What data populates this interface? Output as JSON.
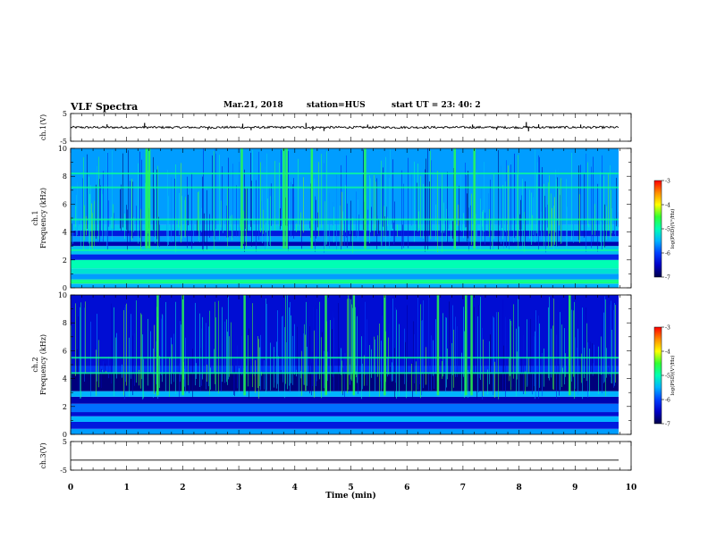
{
  "header": {
    "title": "VLF Spectra",
    "date": "Mar.21, 2018",
    "station": "station=HUS",
    "start_time": "start  UT =   23: 40: 2"
  },
  "chart_data": [
    {
      "type": "line",
      "name": "ch1-waveform",
      "ylabel": "ch.1(V)",
      "ylim": [
        -5,
        5
      ],
      "yticks": [
        "5",
        "-5"
      ],
      "xlim": [
        0,
        10
      ],
      "baseline": 0,
      "noise_amplitude": 0.4,
      "spikes": [
        {
          "x": 0.65,
          "y": 1.1
        },
        {
          "x": 1.32,
          "y": 1.6
        },
        {
          "x": 2.45,
          "y": -0.9
        },
        {
          "x": 3.07,
          "y": 1.3
        },
        {
          "x": 3.22,
          "y": -1.0
        },
        {
          "x": 4.2,
          "y": 1.6
        },
        {
          "x": 4.32,
          "y": -1.1
        },
        {
          "x": 4.52,
          "y": -1.3
        },
        {
          "x": 5.3,
          "y": 1.0
        },
        {
          "x": 7.17,
          "y": 1.0
        },
        {
          "x": 7.6,
          "y": -0.9
        },
        {
          "x": 8.13,
          "y": 1.9
        },
        {
          "x": 8.17,
          "y": -1.4
        },
        {
          "x": 8.35,
          "y": 1.1
        },
        {
          "x": 9.1,
          "y": 1.0
        }
      ]
    },
    {
      "type": "heatmap",
      "name": "ch1-spectrogram",
      "ylabel_line1": "ch.1",
      "ylabel_line2": "Frequency (kHz)",
      "ylim": [
        0,
        10
      ],
      "yticks": [
        "0",
        "2",
        "4",
        "6",
        "8",
        "10"
      ],
      "xlim": [
        0,
        9.82
      ],
      "colorbar_label": "log(PSD)(V²/Hz)",
      "colorbar_ticks": [
        "-3",
        "-4",
        "-5",
        "-6",
        "-7"
      ],
      "clim": [
        -7,
        -3
      ],
      "band_levels": [
        {
          "f0": 0.0,
          "f1": 0.3,
          "v": -5.5
        },
        {
          "f0": 0.3,
          "f1": 0.6,
          "v": -4.8
        },
        {
          "f0": 0.6,
          "f1": 1.0,
          "v": -5.6
        },
        {
          "f0": 1.0,
          "f1": 1.4,
          "v": -5.2
        },
        {
          "f0": 1.4,
          "f1": 2.0,
          "v": -5.0
        },
        {
          "f0": 2.0,
          "f1": 2.4,
          "v": -6.2
        },
        {
          "f0": 2.4,
          "f1": 3.0,
          "v": -5.4
        },
        {
          "f0": 3.0,
          "f1": 3.3,
          "v": -6.6
        },
        {
          "f0": 3.3,
          "f1": 3.7,
          "v": -5.6
        },
        {
          "f0": 3.7,
          "f1": 4.1,
          "v": -6.3
        },
        {
          "f0": 4.1,
          "f1": 4.5,
          "v": -5.4
        },
        {
          "f0": 4.5,
          "f1": 10.0,
          "v": -5.6
        }
      ],
      "lines_khz": [
        0.5,
        4.9,
        7.2,
        8.2,
        2.7
      ],
      "bursts_min": [
        1.35,
        1.4,
        3.05,
        3.8,
        3.85,
        4.3,
        5.25,
        6.85,
        7.2
      ]
    },
    {
      "type": "heatmap",
      "name": "ch2-spectrogram",
      "ylabel_line1": "ch.2",
      "ylabel_line2": "Frequency (kHz)",
      "ylim": [
        0,
        10
      ],
      "yticks": [
        "0",
        "2",
        "4",
        "6",
        "8",
        "10"
      ],
      "xlim": [
        0,
        9.82
      ],
      "colorbar_label": "log(PSD)(V²/Hz)",
      "colorbar_ticks": [
        "-3",
        "-4",
        "-5",
        "-6",
        "-7"
      ],
      "clim": [
        -7,
        -3
      ],
      "band_levels": [
        {
          "f0": 0.0,
          "f1": 0.4,
          "v": -5.6
        },
        {
          "f0": 0.4,
          "f1": 0.9,
          "v": -6.3
        },
        {
          "f0": 0.9,
          "f1": 1.3,
          "v": -5.5
        },
        {
          "f0": 1.3,
          "f1": 1.6,
          "v": -6.4
        },
        {
          "f0": 1.6,
          "f1": 2.2,
          "v": -5.8
        },
        {
          "f0": 2.2,
          "f1": 2.7,
          "v": -6.6
        },
        {
          "f0": 2.7,
          "f1": 3.1,
          "v": -5.5
        },
        {
          "f0": 3.1,
          "f1": 4.4,
          "v": -6.8
        },
        {
          "f0": 4.4,
          "f1": 4.9,
          "v": -6.1
        },
        {
          "f0": 4.9,
          "f1": 10.0,
          "v": -6.4
        }
      ],
      "lines_khz": [
        4.4,
        5.5
      ],
      "bursts_min": [
        1.55,
        2.0,
        3.1,
        4.55,
        5.05,
        5.6,
        6.55,
        7.05,
        7.15,
        8.9
      ]
    },
    {
      "type": "line",
      "name": "ch3-waveform",
      "ylabel": "ch.3(V)",
      "ylim": [
        -5,
        5
      ],
      "yticks": [
        "5",
        "-5"
      ],
      "xlim": [
        0,
        10
      ],
      "baseline": -1.5,
      "noise_amplitude": 0
    }
  ],
  "x_axis": {
    "label": "Time (min)",
    "ticks": [
      "0",
      "1",
      "2",
      "3",
      "4",
      "5",
      "6",
      "7",
      "8",
      "9",
      "10"
    ]
  },
  "colors": {
    "trace": "#000000",
    "colormap": [
      "#00004a",
      "#0000c8",
      "#0040ff",
      "#00b4ff",
      "#00ffb4",
      "#32ff32",
      "#ffff00",
      "#ff8c00",
      "#ff0000"
    ]
  }
}
